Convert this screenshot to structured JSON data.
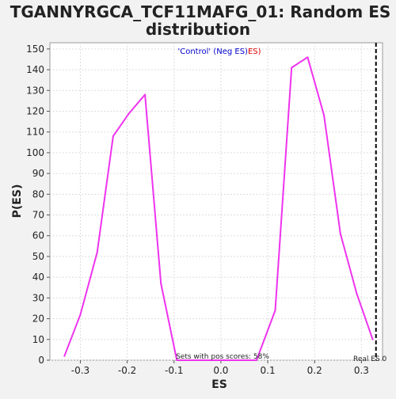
{
  "chart_data": {
    "type": "line",
    "title_lines": [
      "TGANNYRGCA_TCF11MAFG_01: Random ES",
      "distribution"
    ],
    "xlabel": "ES",
    "ylabel": "P(ES)",
    "xlim": [
      -0.365,
      0.345
    ],
    "ylim": [
      0,
      153
    ],
    "x_ticks": [
      -0.3,
      -0.2,
      -0.1,
      0.0,
      0.1,
      0.2,
      0.3
    ],
    "x_tick_labels": [
      "-0.3",
      "-0.2",
      "-0.1",
      "0.0",
      "0.1",
      "0.2",
      "0.3"
    ],
    "y_ticks": [
      0,
      10,
      20,
      30,
      40,
      50,
      60,
      70,
      80,
      90,
      100,
      110,
      120,
      130,
      140,
      150
    ],
    "y_tick_labels": [
      "0",
      "10",
      "20",
      "30",
      "40",
      "50",
      "60",
      "70",
      "80",
      "90",
      "100",
      "110",
      "120",
      "130",
      "140",
      "150"
    ],
    "grid": true,
    "series": [
      {
        "color": "#ee33ee",
        "x": [
          -0.334,
          -0.3,
          -0.264,
          -0.23,
          -0.196,
          -0.162,
          -0.128,
          -0.094,
          -0.06,
          -0.026,
          0.008,
          0.042,
          0.076,
          0.116,
          0.151,
          0.185,
          0.22,
          0.255,
          0.29,
          0.324
        ],
        "y": [
          2,
          22,
          52,
          108,
          119,
          128,
          37,
          0,
          0,
          0,
          0,
          0,
          0,
          24,
          141,
          146,
          118,
          61,
          32,
          10
        ]
      }
    ],
    "legend": {
      "part1": "'Control' (Neg ES)",
      "part2": "ES)",
      "part1_color": "#0000cc",
      "part2_color": "#dd0000",
      "placement": "top-center"
    },
    "annotations": {
      "pos_scores": "Sets with pos scores: 58%",
      "real_es_label": "Real ES 0",
      "real_es_value": 0.331
    }
  }
}
